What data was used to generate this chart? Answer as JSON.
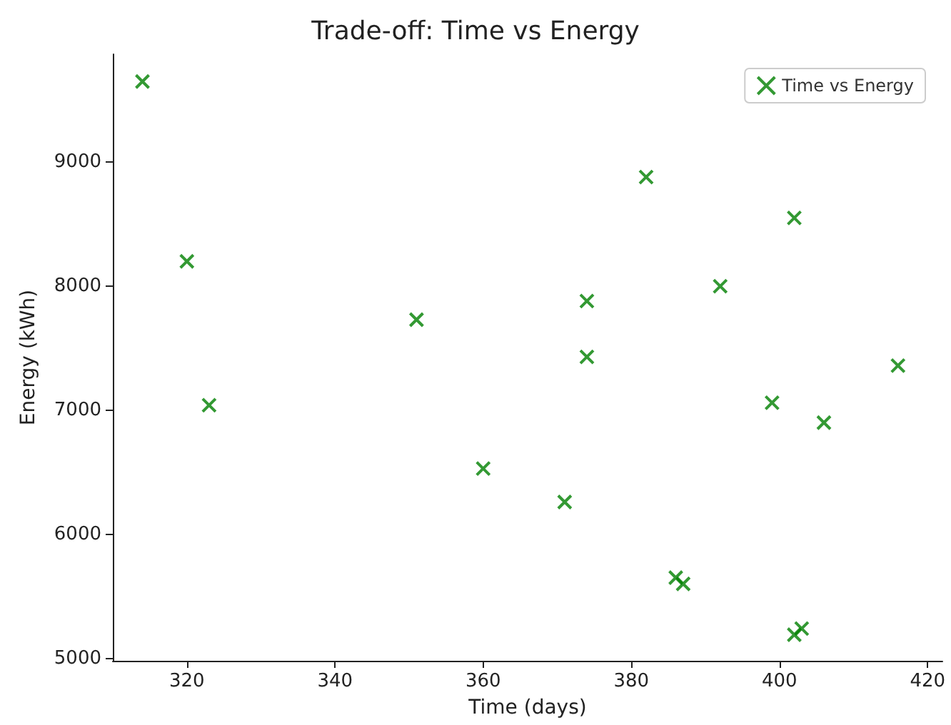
{
  "chart_data": {
    "type": "scatter",
    "title": "Trade-off: Time vs Energy",
    "xlabel": "Time (days)",
    "ylabel": "Energy (kWh)",
    "series": [
      {
        "name": "Time vs Energy",
        "color": "#008000",
        "x": [
          314,
          320,
          323,
          351,
          360,
          371,
          374,
          374,
          382,
          386,
          387,
          392,
          399,
          402,
          402,
          403,
          406,
          416
        ],
        "values": [
          9650,
          8200,
          7040,
          7730,
          6530,
          6260,
          7880,
          7430,
          8880,
          5650,
          5600,
          8000,
          7060,
          8550,
          5190,
          5240,
          6900,
          7360
        ]
      }
    ],
    "xlim": [
      310,
      422
    ],
    "xticks": [
      320,
      340,
      360,
      380,
      400,
      420
    ],
    "ylim": [
      4980,
      9870
    ],
    "yticks": [
      5000,
      6000,
      7000,
      8000,
      9000
    ],
    "marker": "cross",
    "legend": "top right",
    "grid": false
  }
}
